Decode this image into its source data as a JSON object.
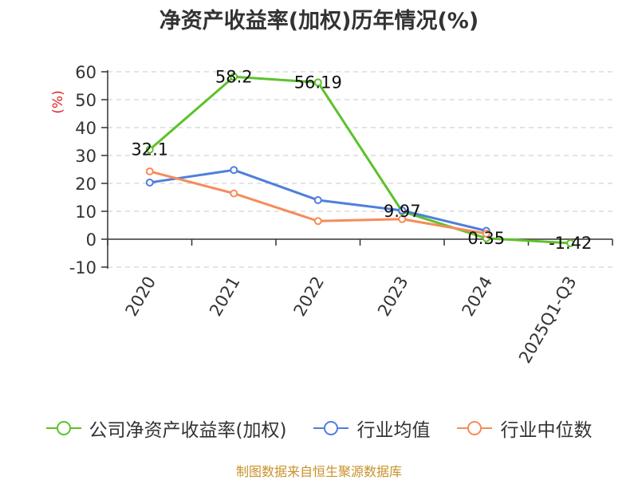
{
  "chart_data": {
    "type": "line",
    "title": "净资产收益率(加权)历年情况(%)",
    "ylabel": "(%)",
    "xlabel": "",
    "categories": [
      "2020",
      "2021",
      "2022",
      "2023",
      "2024",
      "2025Q1-Q3"
    ],
    "ylim": [
      -10,
      60
    ],
    "yticks": [
      60,
      50,
      40,
      30,
      20,
      10,
      0,
      -10
    ],
    "grid": true,
    "legend_position": "bottom",
    "series": [
      {
        "name": "公司净资产收益率(加权)",
        "color": "#5cc22a",
        "values": [
          32.1,
          58.2,
          56.19,
          9.97,
          0.35,
          -1.42
        ],
        "labels": [
          "32.1",
          "58.2",
          "56.19",
          "9.97",
          "0.35",
          "-1.42"
        ]
      },
      {
        "name": "行业均值",
        "color": "#4f7fdc",
        "values": [
          20.3,
          24.8,
          14.0,
          10.3,
          3.0,
          null
        ]
      },
      {
        "name": "行业中位数",
        "color": "#f58c5a",
        "values": [
          24.3,
          16.4,
          6.5,
          7.2,
          2.0,
          null
        ]
      }
    ]
  },
  "source": "制图数据来自恒生聚源数据库"
}
